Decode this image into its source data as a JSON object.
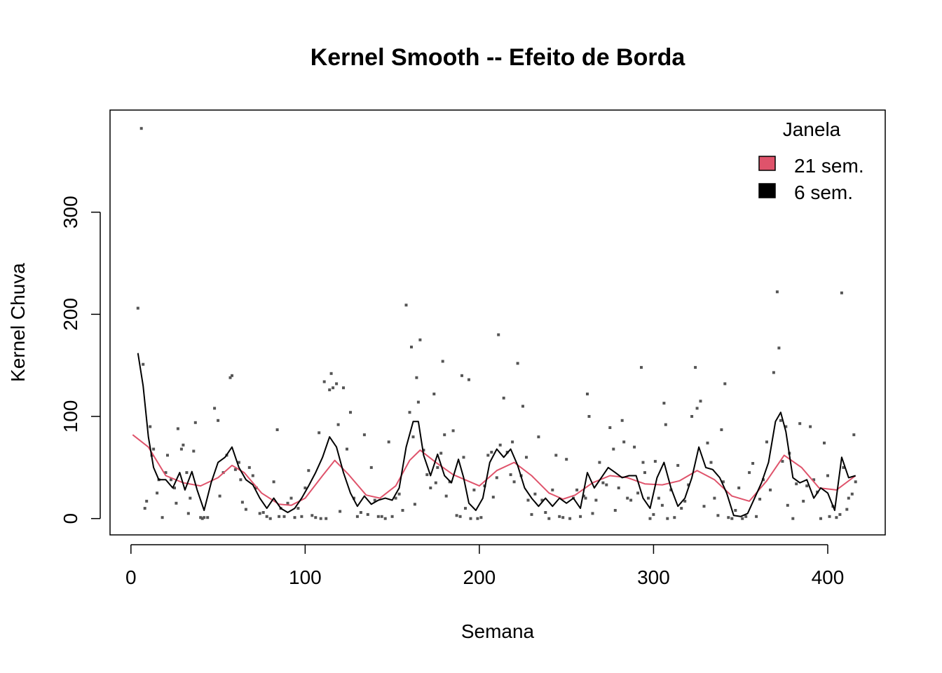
{
  "chart_data": {
    "type": "scatter",
    "title": "Kernel Smooth -- Efeito de Borda",
    "xlabel": "Semana",
    "ylabel": "Kernel Chuva",
    "xlim": [
      -12,
      433
    ],
    "ylim": [
      -16,
      400
    ],
    "x_ticks": [
      "0",
      "100",
      "200",
      "300",
      "400"
    ],
    "y_ticks": [
      "0",
      "100",
      "200",
      "300"
    ],
    "grid": false,
    "legend": {
      "title": "Janela",
      "position": "top-right",
      "entries": [
        {
          "label": "21 sem.",
          "color": "#DF536B"
        },
        {
          "label": "6 sem.",
          "color": "#000000"
        }
      ]
    },
    "points_color": "#555555",
    "points": [
      [
        4,
        206
      ],
      [
        6,
        382
      ],
      [
        7,
        151
      ],
      [
        8,
        10
      ],
      [
        9,
        17
      ],
      [
        11,
        90
      ],
      [
        12,
        62
      ],
      [
        13,
        68
      ],
      [
        15,
        25
      ],
      [
        16,
        38
      ],
      [
        18,
        1
      ],
      [
        20,
        45
      ],
      [
        21,
        62
      ],
      [
        23,
        38
      ],
      [
        25,
        30
      ],
      [
        26,
        15
      ],
      [
        27,
        88
      ],
      [
        29,
        68
      ],
      [
        30,
        72
      ],
      [
        32,
        45
      ],
      [
        33,
        5
      ],
      [
        34,
        20
      ],
      [
        36,
        66
      ],
      [
        37,
        94
      ],
      [
        40,
        1
      ],
      [
        41,
        0
      ],
      [
        42,
        1
      ],
      [
        44,
        1
      ],
      [
        48,
        108
      ],
      [
        50,
        96
      ],
      [
        51,
        22
      ],
      [
        53,
        45
      ],
      [
        55,
        62
      ],
      [
        57,
        138
      ],
      [
        58,
        140
      ],
      [
        60,
        48
      ],
      [
        62,
        55
      ],
      [
        63,
        38
      ],
      [
        64,
        16
      ],
      [
        66,
        9
      ],
      [
        68,
        50
      ],
      [
        70,
        42
      ],
      [
        72,
        30
      ],
      [
        74,
        5
      ],
      [
        76,
        6
      ],
      [
        78,
        2
      ],
      [
        80,
        0
      ],
      [
        82,
        36
      ],
      [
        84,
        87
      ],
      [
        85,
        2
      ],
      [
        86,
        10
      ],
      [
        88,
        2
      ],
      [
        90,
        15
      ],
      [
        92,
        20
      ],
      [
        94,
        1
      ],
      [
        96,
        10
      ],
      [
        98,
        2
      ],
      [
        100,
        30
      ],
      [
        102,
        47
      ],
      [
        104,
        3
      ],
      [
        106,
        1
      ],
      [
        108,
        84
      ],
      [
        109,
        0
      ],
      [
        111,
        134
      ],
      [
        112,
        0
      ],
      [
        114,
        126
      ],
      [
        115,
        142
      ],
      [
        116,
        128
      ],
      [
        118,
        132
      ],
      [
        119,
        92
      ],
      [
        120,
        7
      ],
      [
        122,
        128
      ],
      [
        124,
        68
      ],
      [
        126,
        104
      ],
      [
        128,
        20
      ],
      [
        130,
        2
      ],
      [
        132,
        6
      ],
      [
        134,
        82
      ],
      [
        136,
        4
      ],
      [
        138,
        50
      ],
      [
        140,
        18
      ],
      [
        142,
        2
      ],
      [
        144,
        2
      ],
      [
        146,
        0
      ],
      [
        148,
        75
      ],
      [
        150,
        2
      ],
      [
        152,
        20
      ],
      [
        154,
        24
      ],
      [
        156,
        8
      ],
      [
        158,
        209
      ],
      [
        160,
        104
      ],
      [
        161,
        168
      ],
      [
        162,
        80
      ],
      [
        163,
        14
      ],
      [
        164,
        138
      ],
      [
        165,
        114
      ],
      [
        166,
        175
      ],
      [
        168,
        67
      ],
      [
        170,
        43
      ],
      [
        172,
        30
      ],
      [
        174,
        122
      ],
      [
        175,
        35
      ],
      [
        176,
        50
      ],
      [
        178,
        64
      ],
      [
        179,
        154
      ],
      [
        180,
        82
      ],
      [
        181,
        22
      ],
      [
        183,
        36
      ],
      [
        185,
        86
      ],
      [
        187,
        3
      ],
      [
        189,
        2
      ],
      [
        190,
        140
      ],
      [
        191,
        60
      ],
      [
        192,
        10
      ],
      [
        194,
        136
      ],
      [
        195,
        0
      ],
      [
        197,
        28
      ],
      [
        199,
        0
      ],
      [
        201,
        1
      ],
      [
        203,
        32
      ],
      [
        205,
        62
      ],
      [
        207,
        65
      ],
      [
        208,
        21
      ],
      [
        210,
        40
      ],
      [
        211,
        180
      ],
      [
        212,
        72
      ],
      [
        214,
        118
      ],
      [
        216,
        65
      ],
      [
        218,
        43
      ],
      [
        219,
        75
      ],
      [
        220,
        36
      ],
      [
        222,
        152
      ],
      [
        224,
        42
      ],
      [
        225,
        110
      ],
      [
        227,
        60
      ],
      [
        228,
        18
      ],
      [
        230,
        4
      ],
      [
        232,
        24
      ],
      [
        234,
        80
      ],
      [
        236,
        18
      ],
      [
        238,
        6
      ],
      [
        240,
        0
      ],
      [
        242,
        28
      ],
      [
        244,
        62
      ],
      [
        246,
        2
      ],
      [
        248,
        1
      ],
      [
        250,
        58
      ],
      [
        252,
        0
      ],
      [
        254,
        20
      ],
      [
        256,
        28
      ],
      [
        258,
        2
      ],
      [
        260,
        22
      ],
      [
        261,
        20
      ],
      [
        262,
        122
      ],
      [
        263,
        100
      ],
      [
        265,
        5
      ],
      [
        267,
        18
      ],
      [
        269,
        55
      ],
      [
        271,
        35
      ],
      [
        273,
        33
      ],
      [
        275,
        89
      ],
      [
        277,
        68
      ],
      [
        278,
        8
      ],
      [
        280,
        30
      ],
      [
        282,
        96
      ],
      [
        283,
        75
      ],
      [
        285,
        20
      ],
      [
        287,
        18
      ],
      [
        289,
        70
      ],
      [
        291,
        25
      ],
      [
        293,
        148
      ],
      [
        294,
        55
      ],
      [
        295,
        45
      ],
      [
        297,
        20
      ],
      [
        298,
        0
      ],
      [
        300,
        4
      ],
      [
        301,
        56
      ],
      [
        303,
        20
      ],
      [
        305,
        13
      ],
      [
        306,
        113
      ],
      [
        307,
        92
      ],
      [
        308,
        0
      ],
      [
        310,
        28
      ],
      [
        312,
        1
      ],
      [
        314,
        52
      ],
      [
        316,
        10
      ],
      [
        318,
        17
      ],
      [
        320,
        33
      ],
      [
        322,
        100
      ],
      [
        324,
        148
      ],
      [
        325,
        108
      ],
      [
        327,
        115
      ],
      [
        329,
        12
      ],
      [
        331,
        74
      ],
      [
        333,
        55
      ],
      [
        335,
        20
      ],
      [
        337,
        3
      ],
      [
        339,
        87
      ],
      [
        340,
        36
      ],
      [
        341,
        132
      ],
      [
        343,
        1
      ],
      [
        345,
        0
      ],
      [
        347,
        8
      ],
      [
        349,
        30
      ],
      [
        351,
        0
      ],
      [
        353,
        2
      ],
      [
        355,
        45
      ],
      [
        357,
        54
      ],
      [
        359,
        2
      ],
      [
        361,
        19
      ],
      [
        363,
        38
      ],
      [
        365,
        75
      ],
      [
        367,
        28
      ],
      [
        369,
        143
      ],
      [
        371,
        222
      ],
      [
        372,
        167
      ],
      [
        373,
        96
      ],
      [
        374,
        56
      ],
      [
        376,
        90
      ],
      [
        377,
        13
      ],
      [
        378,
        64
      ],
      [
        380,
        0
      ],
      [
        382,
        34
      ],
      [
        384,
        93
      ],
      [
        386,
        17
      ],
      [
        388,
        32
      ],
      [
        390,
        90
      ],
      [
        392,
        38
      ],
      [
        394,
        26
      ],
      [
        396,
        0
      ],
      [
        398,
        74
      ],
      [
        400,
        42
      ],
      [
        401,
        2
      ],
      [
        403,
        12
      ],
      [
        405,
        1
      ],
      [
        407,
        4
      ],
      [
        408,
        221
      ],
      [
        409,
        50
      ],
      [
        411,
        9
      ],
      [
        412,
        20
      ],
      [
        414,
        24
      ],
      [
        415,
        82
      ],
      [
        416,
        36
      ]
    ],
    "series": [
      {
        "name": "21 sem.",
        "color": "#DF536B",
        "x": [
          1,
          10,
          20,
          30,
          40,
          50,
          58,
          65,
          75,
          85,
          92,
          100,
          110,
          117,
          125,
          135,
          143,
          152,
          160,
          166,
          175,
          185,
          200,
          210,
          220,
          230,
          240,
          248,
          255,
          265,
          275,
          285,
          295,
          305,
          315,
          325,
          335,
          345,
          355,
          365,
          375,
          385,
          395,
          405,
          416
        ],
        "y": [
          82,
          70,
          42,
          35,
          32,
          40,
          52,
          45,
          25,
          14,
          13,
          20,
          42,
          57,
          43,
          23,
          20,
          32,
          57,
          67,
          55,
          43,
          32,
          47,
          55,
          42,
          25,
          19,
          23,
          35,
          42,
          40,
          34,
          33,
          37,
          47,
          38,
          22,
          17,
          37,
          62,
          50,
          30,
          28,
          42
        ]
      },
      {
        "name": "6 sem.",
        "color": "#000000",
        "x": [
          4,
          7,
          10,
          13,
          16,
          20,
          24,
          28,
          31,
          35,
          38,
          42,
          46,
          50,
          54,
          58,
          62,
          66,
          70,
          74,
          78,
          82,
          86,
          90,
          94,
          98,
          102,
          106,
          110,
          114,
          118,
          122,
          126,
          130,
          134,
          138,
          142,
          146,
          150,
          154,
          158,
          162,
          165,
          168,
          172,
          176,
          180,
          184,
          188,
          191,
          194,
          198,
          202,
          206,
          210,
          214,
          218,
          222,
          226,
          230,
          234,
          238,
          242,
          246,
          250,
          254,
          258,
          262,
          266,
          270,
          274,
          278,
          282,
          286,
          290,
          294,
          298,
          302,
          306,
          310,
          314,
          318,
          322,
          326,
          330,
          334,
          338,
          342,
          346,
          350,
          354,
          358,
          362,
          366,
          370,
          373,
          376,
          380,
          384,
          388,
          392,
          396,
          400,
          404,
          408,
          412,
          416
        ],
        "y": [
          162,
          130,
          80,
          50,
          38,
          38,
          30,
          45,
          28,
          46,
          28,
          8,
          35,
          55,
          60,
          70,
          50,
          38,
          33,
          20,
          10,
          20,
          10,
          6,
          10,
          20,
          32,
          45,
          60,
          80,
          70,
          45,
          25,
          12,
          22,
          14,
          18,
          20,
          18,
          30,
          70,
          95,
          95,
          62,
          42,
          63,
          42,
          35,
          58,
          40,
          15,
          8,
          20,
          55,
          68,
          60,
          68,
          52,
          30,
          20,
          12,
          20,
          12,
          20,
          15,
          20,
          10,
          45,
          30,
          40,
          50,
          45,
          40,
          42,
          42,
          20,
          10,
          40,
          55,
          30,
          12,
          20,
          40,
          70,
          50,
          48,
          40,
          25,
          3,
          2,
          5,
          20,
          35,
          55,
          95,
          104,
          85,
          40,
          35,
          38,
          20,
          30,
          25,
          8,
          60,
          40,
          42
        ]
      }
    ]
  }
}
